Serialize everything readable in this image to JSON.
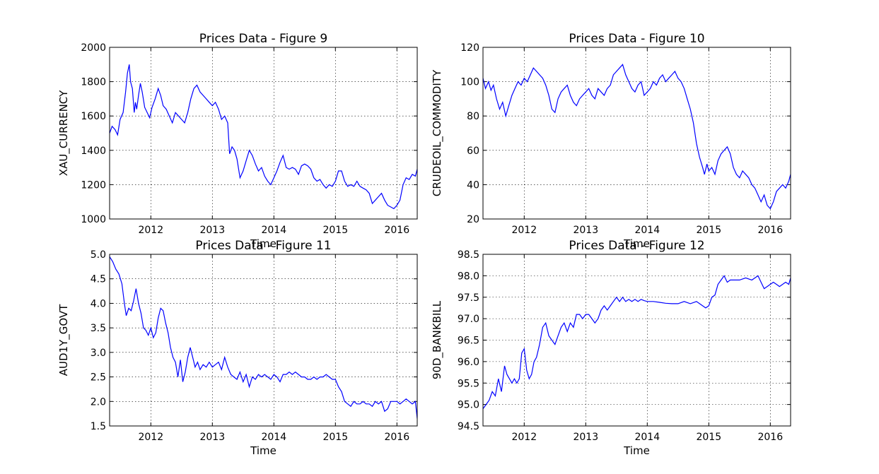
{
  "chart_data": [
    {
      "type": "line",
      "title": "Prices Data - Figure 9",
      "xlabel": "Time",
      "ylabel": "XAU_CURRENCY",
      "xlim": [
        2011.33,
        2016.33
      ],
      "ylim": [
        1000,
        2000
      ],
      "xticks": [
        "2012",
        "2013",
        "2014",
        "2015",
        "2016"
      ],
      "yticks": [
        "1000",
        "1200",
        "1400",
        "1600",
        "1800",
        "2000"
      ],
      "grid": true,
      "series": [
        {
          "color": "#0000ff",
          "x": [
            2011.33,
            2011.37,
            2011.42,
            2011.46,
            2011.5,
            2011.55,
            2011.59,
            2011.62,
            2011.65,
            2011.67,
            2011.7,
            2011.73,
            2011.75,
            2011.77,
            2011.8,
            2011.83,
            2011.86,
            2011.9,
            2011.94,
            2011.98,
            2012.02,
            2012.07,
            2012.12,
            2012.16,
            2012.2,
            2012.25,
            2012.3,
            2012.35,
            2012.4,
            2012.45,
            2012.5,
            2012.55,
            2012.6,
            2012.65,
            2012.7,
            2012.75,
            2012.8,
            2012.85,
            2012.9,
            2012.95,
            2013.0,
            2013.05,
            2013.1,
            2013.15,
            2013.2,
            2013.25,
            2013.28,
            2013.32,
            2013.36,
            2013.4,
            2013.45,
            2013.5,
            2013.55,
            2013.6,
            2013.65,
            2013.7,
            2013.75,
            2013.8,
            2013.85,
            2013.9,
            2013.95,
            2014.0,
            2014.05,
            2014.1,
            2014.15,
            2014.2,
            2014.25,
            2014.3,
            2014.35,
            2014.4,
            2014.45,
            2014.5,
            2014.55,
            2014.6,
            2014.65,
            2014.7,
            2014.75,
            2014.8,
            2014.85,
            2014.9,
            2014.95,
            2015.0,
            2015.05,
            2015.1,
            2015.15,
            2015.2,
            2015.25,
            2015.3,
            2015.35,
            2015.4,
            2015.45,
            2015.5,
            2015.55,
            2015.6,
            2015.65,
            2015.7,
            2015.75,
            2015.8,
            2015.85,
            2015.9,
            2015.95,
            2016.0,
            2016.05,
            2016.1,
            2016.15,
            2016.2,
            2016.25,
            2016.3,
            2016.33
          ],
          "y": [
            1500,
            1540,
            1520,
            1490,
            1580,
            1620,
            1740,
            1850,
            1900,
            1800,
            1760,
            1620,
            1680,
            1640,
            1720,
            1790,
            1740,
            1650,
            1620,
            1590,
            1650,
            1700,
            1760,
            1720,
            1660,
            1640,
            1600,
            1560,
            1620,
            1600,
            1580,
            1560,
            1620,
            1700,
            1760,
            1780,
            1740,
            1720,
            1700,
            1680,
            1660,
            1680,
            1640,
            1580,
            1600,
            1560,
            1380,
            1420,
            1400,
            1350,
            1240,
            1280,
            1340,
            1400,
            1370,
            1320,
            1280,
            1300,
            1250,
            1220,
            1200,
            1240,
            1280,
            1330,
            1370,
            1300,
            1290,
            1300,
            1290,
            1260,
            1310,
            1320,
            1310,
            1290,
            1240,
            1220,
            1230,
            1200,
            1180,
            1200,
            1190,
            1220,
            1280,
            1280,
            1220,
            1190,
            1200,
            1190,
            1220,
            1190,
            1180,
            1170,
            1150,
            1090,
            1110,
            1130,
            1150,
            1110,
            1080,
            1070,
            1060,
            1080,
            1110,
            1200,
            1240,
            1230,
            1260,
            1250,
            1290
          ]
        }
      ]
    },
    {
      "type": "line",
      "title": "Prices Data - Figure 10",
      "xlabel": "Time",
      "ylabel": "CRUDEOIL_COMMODITY",
      "xlim": [
        2011.33,
        2016.33
      ],
      "ylim": [
        20,
        120
      ],
      "xticks": [
        "2012",
        "2013",
        "2014",
        "2015",
        "2016"
      ],
      "yticks": [
        "20",
        "40",
        "60",
        "80",
        "100",
        "120"
      ],
      "grid": true,
      "series": [
        {
          "color": "#0000ff",
          "x": [
            2011.33,
            2011.37,
            2011.42,
            2011.46,
            2011.5,
            2011.55,
            2011.6,
            2011.65,
            2011.7,
            2011.75,
            2011.8,
            2011.85,
            2011.9,
            2011.95,
            2012.0,
            2012.05,
            2012.1,
            2012.15,
            2012.2,
            2012.25,
            2012.3,
            2012.35,
            2012.4,
            2012.45,
            2012.5,
            2012.55,
            2012.6,
            2012.65,
            2012.7,
            2012.75,
            2012.8,
            2012.85,
            2012.9,
            2012.95,
            2013.0,
            2013.05,
            2013.1,
            2013.15,
            2013.2,
            2013.25,
            2013.3,
            2013.35,
            2013.4,
            2013.45,
            2013.5,
            2013.55,
            2013.6,
            2013.65,
            2013.7,
            2013.75,
            2013.8,
            2013.85,
            2013.9,
            2013.95,
            2014.0,
            2014.05,
            2014.1,
            2014.15,
            2014.2,
            2014.25,
            2014.3,
            2014.35,
            2014.4,
            2014.45,
            2014.5,
            2014.55,
            2014.6,
            2014.65,
            2014.7,
            2014.75,
            2014.8,
            2014.85,
            2014.9,
            2014.93,
            2014.97,
            2015.0,
            2015.05,
            2015.1,
            2015.15,
            2015.2,
            2015.25,
            2015.3,
            2015.35,
            2015.4,
            2015.45,
            2015.5,
            2015.55,
            2015.6,
            2015.65,
            2015.7,
            2015.75,
            2015.8,
            2015.85,
            2015.9,
            2015.95,
            2016.0,
            2016.05,
            2016.1,
            2016.15,
            2016.2,
            2016.25,
            2016.3,
            2016.33
          ],
          "y": [
            102,
            96,
            100,
            95,
            98,
            90,
            84,
            88,
            80,
            86,
            92,
            96,
            100,
            98,
            102,
            100,
            104,
            108,
            106,
            104,
            102,
            98,
            92,
            84,
            82,
            90,
            94,
            96,
            98,
            92,
            88,
            86,
            90,
            92,
            94,
            96,
            92,
            90,
            96,
            94,
            92,
            96,
            98,
            104,
            106,
            108,
            110,
            104,
            100,
            96,
            94,
            98,
            100,
            92,
            94,
            96,
            100,
            98,
            102,
            104,
            100,
            102,
            104,
            106,
            102,
            100,
            96,
            90,
            84,
            76,
            64,
            56,
            50,
            46,
            52,
            48,
            50,
            46,
            54,
            58,
            60,
            62,
            58,
            50,
            46,
            44,
            48,
            46,
            44,
            40,
            38,
            34,
            30,
            34,
            28,
            26,
            30,
            36,
            38,
            40,
            38,
            42,
            46
          ]
        }
      ]
    },
    {
      "type": "line",
      "title": "Prices Data - Figure 11",
      "xlabel": "Time",
      "ylabel": "AUD1Y_GOVT",
      "xlim": [
        2011.33,
        2016.33
      ],
      "ylim": [
        1.5,
        5.0
      ],
      "xticks": [
        "2012",
        "2013",
        "2014",
        "2015",
        "2016"
      ],
      "yticks": [
        "1.5",
        "2.0",
        "2.5",
        "3.0",
        "3.5",
        "4.0",
        "4.5",
        "5.0"
      ],
      "grid": true,
      "series": [
        {
          "color": "#0000ff",
          "x": [
            2011.33,
            2011.38,
            2011.43,
            2011.48,
            2011.53,
            2011.57,
            2011.6,
            2011.64,
            2011.68,
            2011.72,
            2011.76,
            2011.8,
            2011.84,
            2011.88,
            2011.92,
            2011.96,
            2012.0,
            2012.04,
            2012.08,
            2012.12,
            2012.16,
            2012.2,
            2012.24,
            2012.28,
            2012.32,
            2012.36,
            2012.4,
            2012.44,
            2012.48,
            2012.52,
            2012.56,
            2012.6,
            2012.64,
            2012.68,
            2012.72,
            2012.76,
            2012.8,
            2012.85,
            2012.9,
            2012.95,
            2013.0,
            2013.05,
            2013.1,
            2013.15,
            2013.2,
            2013.25,
            2013.3,
            2013.35,
            2013.4,
            2013.45,
            2013.5,
            2013.55,
            2013.6,
            2013.65,
            2013.7,
            2013.75,
            2013.8,
            2013.85,
            2013.9,
            2013.95,
            2014.0,
            2014.05,
            2014.1,
            2014.15,
            2014.2,
            2014.25,
            2014.3,
            2014.35,
            2014.4,
            2014.45,
            2014.5,
            2014.55,
            2014.6,
            2014.65,
            2014.7,
            2014.75,
            2014.8,
            2014.85,
            2014.9,
            2014.95,
            2015.0,
            2015.05,
            2015.1,
            2015.15,
            2015.2,
            2015.25,
            2015.3,
            2015.35,
            2015.4,
            2015.45,
            2015.5,
            2015.55,
            2015.6,
            2015.65,
            2015.7,
            2015.75,
            2015.8,
            2015.85,
            2015.9,
            2015.95,
            2016.0,
            2016.05,
            2016.1,
            2016.15,
            2016.2,
            2016.25,
            2016.3,
            2016.33
          ],
          "y": [
            4.95,
            4.85,
            4.7,
            4.6,
            4.4,
            4.0,
            3.75,
            3.9,
            3.85,
            4.05,
            4.3,
            4.0,
            3.8,
            3.5,
            3.45,
            3.35,
            3.5,
            3.3,
            3.4,
            3.7,
            3.9,
            3.85,
            3.6,
            3.4,
            3.1,
            2.9,
            2.8,
            2.5,
            2.85,
            2.4,
            2.6,
            2.9,
            3.1,
            2.9,
            2.7,
            2.8,
            2.65,
            2.75,
            2.7,
            2.8,
            2.7,
            2.75,
            2.8,
            2.65,
            2.9,
            2.7,
            2.55,
            2.5,
            2.45,
            2.6,
            2.4,
            2.55,
            2.3,
            2.5,
            2.45,
            2.55,
            2.5,
            2.55,
            2.5,
            2.45,
            2.55,
            2.5,
            2.4,
            2.55,
            2.55,
            2.6,
            2.55,
            2.6,
            2.55,
            2.5,
            2.5,
            2.45,
            2.45,
            2.5,
            2.45,
            2.5,
            2.5,
            2.55,
            2.5,
            2.45,
            2.45,
            2.3,
            2.2,
            2.0,
            1.95,
            1.9,
            2.0,
            1.95,
            1.95,
            2.0,
            1.95,
            1.95,
            1.9,
            2.0,
            1.95,
            2.0,
            1.8,
            1.85,
            2.0,
            2.0,
            2.0,
            1.95,
            2.0,
            2.05,
            2.0,
            1.95,
            2.0,
            1.65
          ]
        }
      ]
    },
    {
      "type": "line",
      "title": "Prices Data - Figure 12",
      "xlabel": "Time",
      "ylabel": "90D_BANKBILL",
      "xlim": [
        2011.33,
        2016.33
      ],
      "ylim": [
        94.5,
        98.5
      ],
      "xticks": [
        "2012",
        "2013",
        "2014",
        "2015",
        "2016"
      ],
      "yticks": [
        "94.5",
        "95.0",
        "95.5",
        "96.0",
        "96.5",
        "97.0",
        "97.5",
        "98.0",
        "98.5"
      ],
      "grid": true,
      "series": [
        {
          "color": "#0000ff",
          "x": [
            2011.33,
            2011.38,
            2011.43,
            2011.48,
            2011.53,
            2011.58,
            2011.63,
            2011.68,
            2011.72,
            2011.76,
            2011.8,
            2011.84,
            2011.88,
            2011.92,
            2011.96,
            2012.0,
            2012.04,
            2012.08,
            2012.12,
            2012.16,
            2012.2,
            2012.25,
            2012.3,
            2012.35,
            2012.4,
            2012.45,
            2012.5,
            2012.55,
            2012.6,
            2012.65,
            2012.7,
            2012.75,
            2012.8,
            2012.85,
            2012.9,
            2012.95,
            2013.0,
            2013.05,
            2013.1,
            2013.15,
            2013.2,
            2013.25,
            2013.3,
            2013.35,
            2013.4,
            2013.45,
            2013.5,
            2013.55,
            2013.6,
            2013.65,
            2013.7,
            2013.75,
            2013.8,
            2013.85,
            2013.9,
            2013.95,
            2014.0,
            2014.1,
            2014.2,
            2014.3,
            2014.4,
            2014.5,
            2014.6,
            2014.7,
            2014.8,
            2014.9,
            2014.95,
            2015.0,
            2015.05,
            2015.1,
            2015.15,
            2015.2,
            2015.25,
            2015.3,
            2015.35,
            2015.4,
            2015.5,
            2015.6,
            2015.7,
            2015.8,
            2015.85,
            2015.9,
            2015.95,
            2016.0,
            2016.05,
            2016.1,
            2016.15,
            2016.2,
            2016.25,
            2016.3,
            2016.33
          ],
          "y": [
            94.9,
            95.0,
            95.1,
            95.3,
            95.2,
            95.6,
            95.3,
            95.9,
            95.7,
            95.6,
            95.5,
            95.6,
            95.5,
            95.6,
            96.2,
            96.3,
            95.8,
            95.6,
            95.7,
            96.0,
            96.1,
            96.4,
            96.8,
            96.9,
            96.6,
            96.5,
            96.4,
            96.6,
            96.8,
            96.9,
            96.7,
            96.9,
            96.8,
            97.1,
            97.1,
            97.0,
            97.1,
            97.1,
            97.0,
            96.9,
            97.0,
            97.2,
            97.3,
            97.2,
            97.3,
            97.4,
            97.5,
            97.4,
            97.5,
            97.4,
            97.45,
            97.4,
            97.45,
            97.4,
            97.45,
            97.42,
            97.4,
            97.4,
            97.38,
            97.36,
            97.35,
            97.35,
            97.4,
            97.35,
            97.4,
            97.3,
            97.25,
            97.3,
            97.5,
            97.55,
            97.8,
            97.9,
            98.0,
            97.85,
            97.9,
            97.9,
            97.9,
            97.95,
            97.9,
            98.0,
            97.85,
            97.7,
            97.75,
            97.8,
            97.85,
            97.8,
            97.75,
            97.8,
            97.85,
            97.8,
            97.95
          ]
        }
      ]
    }
  ]
}
